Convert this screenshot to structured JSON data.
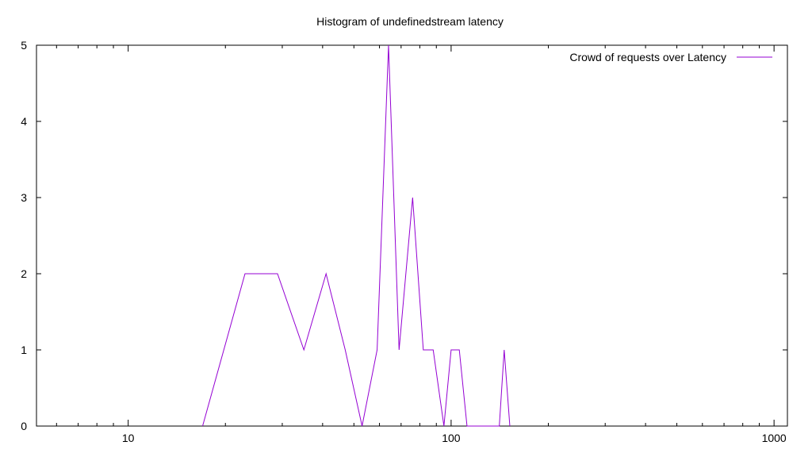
{
  "chart_data": {
    "type": "line",
    "title": "Histogram of undefinedstream latency",
    "xlabel": "",
    "ylabel": "",
    "xscale": "log",
    "xlim": [
      5.2,
      1100
    ],
    "ylim": [
      0,
      5
    ],
    "grid": false,
    "legend_position": "top-right",
    "x_major_ticks": [
      10,
      100,
      1000
    ],
    "x_major_tick_labels": [
      "10",
      "100",
      "1000"
    ],
    "x_minor_ticks": [
      6,
      7,
      8,
      9,
      20,
      30,
      40,
      50,
      60,
      70,
      80,
      90,
      200,
      300,
      400,
      500,
      600,
      700,
      800,
      900
    ],
    "y_ticks": [
      0,
      1,
      2,
      3,
      4,
      5
    ],
    "y_tick_labels": [
      "0",
      "1",
      "2",
      "3",
      "4",
      "5"
    ],
    "series": [
      {
        "name": "Crowd of requests over Latency",
        "color": "#9400d3",
        "x": [
          17,
          23,
          29,
          35,
          41,
          47,
          53,
          59,
          64,
          69,
          76,
          82,
          88,
          95,
          100,
          106,
          112,
          141,
          146,
          152
        ],
        "y": [
          0,
          2,
          2,
          1,
          2,
          1,
          0,
          1,
          5,
          1,
          3,
          1,
          1,
          0,
          1,
          1,
          0,
          0,
          1,
          0
        ]
      }
    ]
  }
}
